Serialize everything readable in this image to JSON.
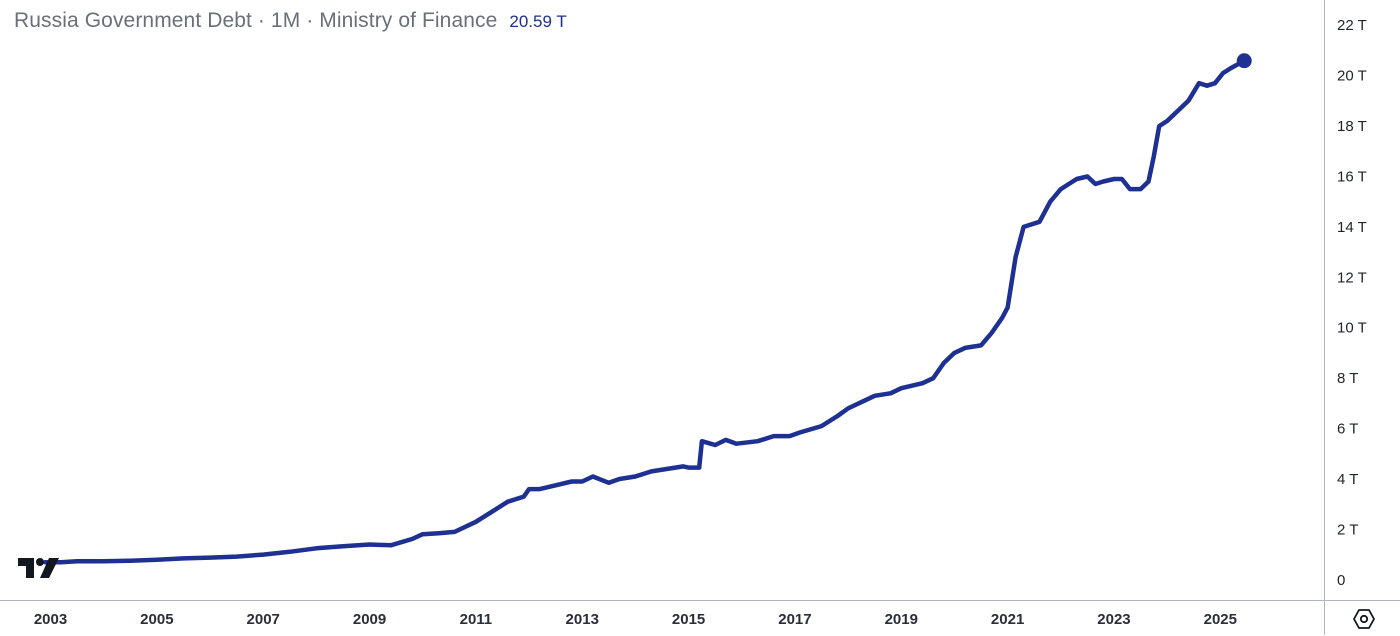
{
  "header": {
    "title": "Russia Government Debt · 1M · Ministry of Finance",
    "last_value": "20.59 T"
  },
  "icons": {
    "logo": "tradingview-logo",
    "settings": "settings-hexagon-icon"
  },
  "colors": {
    "series": "#1e3192",
    "text": "#2a2e39",
    "muted": "#6b6f79",
    "axis_line": "#b2b5be"
  },
  "chart_data": {
    "type": "line",
    "title": "Russia Government Debt · 1M · Ministry of Finance",
    "xlabel": "",
    "ylabel": "",
    "y_unit": "T",
    "xlim": [
      2002.05,
      2026.95
    ],
    "ylim": [
      -0.8,
      23.0
    ],
    "x_ticks": [
      {
        "value": 2003,
        "label": "2003"
      },
      {
        "value": 2005,
        "label": "2005"
      },
      {
        "value": 2007,
        "label": "2007"
      },
      {
        "value": 2009,
        "label": "2009"
      },
      {
        "value": 2011,
        "label": "2011"
      },
      {
        "value": 2013,
        "label": "2013"
      },
      {
        "value": 2015,
        "label": "2015"
      },
      {
        "value": 2017,
        "label": "2017"
      },
      {
        "value": 2019,
        "label": "2019"
      },
      {
        "value": 2021,
        "label": "2021"
      },
      {
        "value": 2023,
        "label": "2023"
      },
      {
        "value": 2025,
        "label": "2025"
      }
    ],
    "y_ticks": [
      {
        "value": 0,
        "label": "0"
      },
      {
        "value": 2,
        "label": "2 T"
      },
      {
        "value": 4,
        "label": "4 T"
      },
      {
        "value": 6,
        "label": "6 T"
      },
      {
        "value": 8,
        "label": "8 T"
      },
      {
        "value": 10,
        "label": "10 T"
      },
      {
        "value": 12,
        "label": "12 T"
      },
      {
        "value": 14,
        "label": "14 T"
      },
      {
        "value": 16,
        "label": "16 T"
      },
      {
        "value": 18,
        "label": "18 T"
      },
      {
        "value": 20,
        "label": "20 T"
      },
      {
        "value": 22,
        "label": "22 T"
      }
    ],
    "grid": false,
    "legend": "none",
    "series": [
      {
        "values": [
          [
            2002.9,
            0.7
          ],
          [
            2003.2,
            0.7
          ],
          [
            2003.5,
            0.74
          ],
          [
            2004.0,
            0.74
          ],
          [
            2004.5,
            0.76
          ],
          [
            2005.0,
            0.8
          ],
          [
            2005.5,
            0.85
          ],
          [
            2006.0,
            0.88
          ],
          [
            2006.5,
            0.92
          ],
          [
            2007.0,
            1.0
          ],
          [
            2007.5,
            1.11
          ],
          [
            2008.0,
            1.25
          ],
          [
            2008.5,
            1.33
          ],
          [
            2009.0,
            1.4
          ],
          [
            2009.4,
            1.37
          ],
          [
            2009.8,
            1.62
          ],
          [
            2010.0,
            1.81
          ],
          [
            2010.3,
            1.85
          ],
          [
            2010.6,
            1.9
          ],
          [
            2011.0,
            2.3
          ],
          [
            2011.3,
            2.7
          ],
          [
            2011.6,
            3.1
          ],
          [
            2011.9,
            3.3
          ],
          [
            2012.0,
            3.6
          ],
          [
            2012.2,
            3.6
          ],
          [
            2012.5,
            3.75
          ],
          [
            2012.8,
            3.9
          ],
          [
            2013.0,
            3.9
          ],
          [
            2013.2,
            4.1
          ],
          [
            2013.5,
            3.85
          ],
          [
            2013.7,
            4.0
          ],
          [
            2014.0,
            4.1
          ],
          [
            2014.3,
            4.3
          ],
          [
            2014.6,
            4.4
          ],
          [
            2014.9,
            4.5
          ],
          [
            2015.0,
            4.45
          ],
          [
            2015.2,
            4.45
          ],
          [
            2015.25,
            5.5
          ],
          [
            2015.5,
            5.35
          ],
          [
            2015.7,
            5.55
          ],
          [
            2015.9,
            5.4
          ],
          [
            2016.3,
            5.5
          ],
          [
            2016.6,
            5.7
          ],
          [
            2016.9,
            5.7
          ],
          [
            2017.1,
            5.85
          ],
          [
            2017.5,
            6.1
          ],
          [
            2017.8,
            6.5
          ],
          [
            2018.0,
            6.8
          ],
          [
            2018.3,
            7.1
          ],
          [
            2018.5,
            7.3
          ],
          [
            2018.8,
            7.4
          ],
          [
            2019.0,
            7.6
          ],
          [
            2019.4,
            7.8
          ],
          [
            2019.6,
            8.0
          ],
          [
            2019.8,
            8.6
          ],
          [
            2020.0,
            9.0
          ],
          [
            2020.2,
            9.2
          ],
          [
            2020.5,
            9.3
          ],
          [
            2020.7,
            9.8
          ],
          [
            2020.9,
            10.4
          ],
          [
            2021.0,
            10.8
          ],
          [
            2021.15,
            12.8
          ],
          [
            2021.3,
            14.0
          ],
          [
            2021.6,
            14.2
          ],
          [
            2021.8,
            15.0
          ],
          [
            2022.0,
            15.5
          ],
          [
            2022.3,
            15.9
          ],
          [
            2022.5,
            16.0
          ],
          [
            2022.65,
            15.7
          ],
          [
            2022.8,
            15.8
          ],
          [
            2023.0,
            15.9
          ],
          [
            2023.15,
            15.9
          ],
          [
            2023.3,
            15.5
          ],
          [
            2023.5,
            15.5
          ],
          [
            2023.65,
            15.8
          ],
          [
            2023.75,
            16.8
          ],
          [
            2023.85,
            18.0
          ],
          [
            2024.0,
            18.2
          ],
          [
            2024.2,
            18.6
          ],
          [
            2024.4,
            19.0
          ],
          [
            2024.6,
            19.7
          ],
          [
            2024.75,
            19.6
          ],
          [
            2024.9,
            19.7
          ],
          [
            2025.05,
            20.1
          ],
          [
            2025.2,
            20.3
          ],
          [
            2025.45,
            20.59
          ]
        ],
        "last": {
          "x": 2025.45,
          "y": 20.59
        }
      }
    ]
  }
}
